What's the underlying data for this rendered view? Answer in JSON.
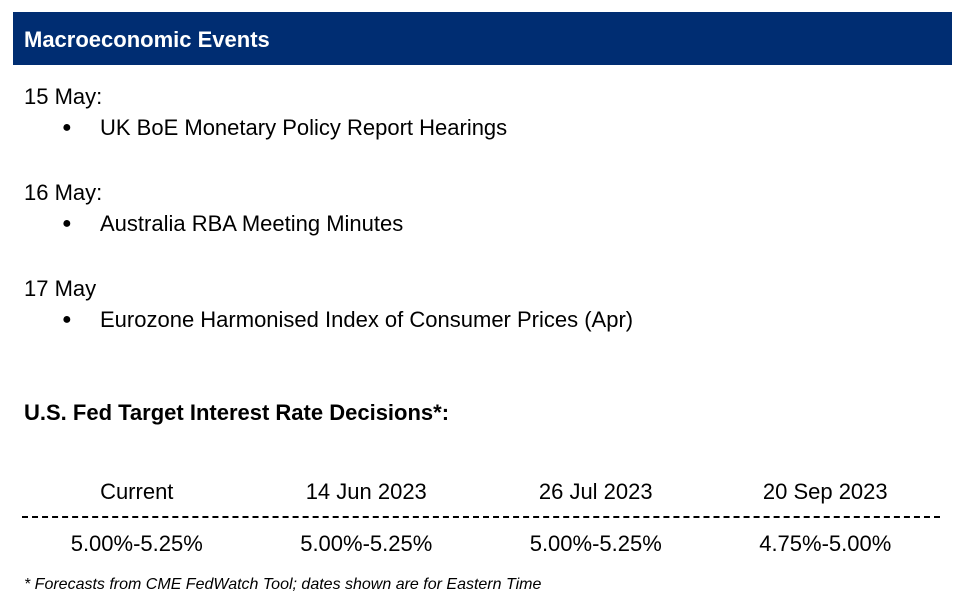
{
  "header": {
    "title": "Macroeconomic Events"
  },
  "events": [
    {
      "date": "15 May:",
      "items": [
        "UK BoE Monetary Policy Report Hearings"
      ]
    },
    {
      "date": "16 May:",
      "items": [
        "Australia RBA Meeting Minutes"
      ]
    },
    {
      "date": "17 May",
      "items": [
        "Eurozone Harmonised Index of Consumer Prices (Apr)"
      ]
    }
  ],
  "bullet_glyph": "●",
  "fed": {
    "heading": "U.S. Fed Target Interest Rate Decisions*:",
    "columns": [
      "Current",
      "14 Jun 2023",
      "26 Jul 2023",
      "20 Sep 2023"
    ],
    "values": [
      "5.00%-5.25%",
      "5.00%-5.25%",
      "5.00%-5.25%",
      "4.75%-5.00%"
    ]
  },
  "footnote": "* Forecasts from CME FedWatch Tool; dates shown are for Eastern Time",
  "colors": {
    "header_background": "#002d72",
    "header_text": "#ffffff"
  }
}
